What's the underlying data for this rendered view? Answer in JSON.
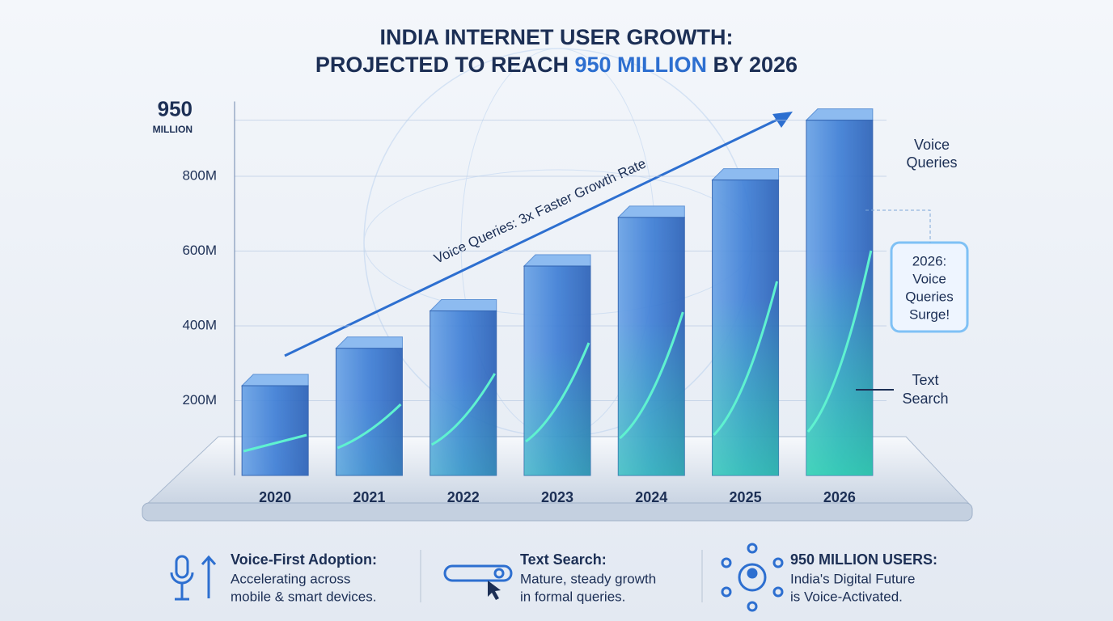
{
  "chart_data": {
    "type": "bar",
    "title_lines": [
      "INDIA INTERNET USER GROWTH:",
      [
        "PROJECTED TO REACH ",
        "950 MILLION",
        " BY 2026"
      ]
    ],
    "categories": [
      "2020",
      "2021",
      "2022",
      "2023",
      "2024",
      "2025",
      "2026"
    ],
    "values": [
      240,
      340,
      440,
      560,
      690,
      790,
      950
    ],
    "color": "#3f7fd6",
    "ylim": [
      0,
      1000
    ],
    "yticks": [
      {
        "value": 200,
        "label": "200M"
      },
      {
        "value": 400,
        "label": "400M"
      },
      {
        "value": 600,
        "label": "600M"
      },
      {
        "value": 800,
        "label": "800M"
      },
      {
        "value": 950,
        "label": "950"
      }
    ],
    "top_tick_unit": "MILLION",
    "grid": true,
    "arrow_label": "Voice Queries: 3x Faster Growth Rate",
    "voice_label": [
      "Voice",
      "Queries"
    ],
    "callout": [
      "2026:",
      "Voice",
      "Queries",
      "Surge!"
    ],
    "text_label": [
      "Text",
      "Search"
    ]
  },
  "footer": [
    {
      "title": "Voice-First Adoption:",
      "lines": [
        "Accelerating across",
        "mobile & smart devices."
      ]
    },
    {
      "title": "Text Search:",
      "lines": [
        "Mature, steady growth",
        "in formal queries."
      ]
    },
    {
      "title": "950 MILLION USERS:",
      "lines": [
        "India's Digital Future",
        "is Voice-Activated."
      ]
    }
  ]
}
